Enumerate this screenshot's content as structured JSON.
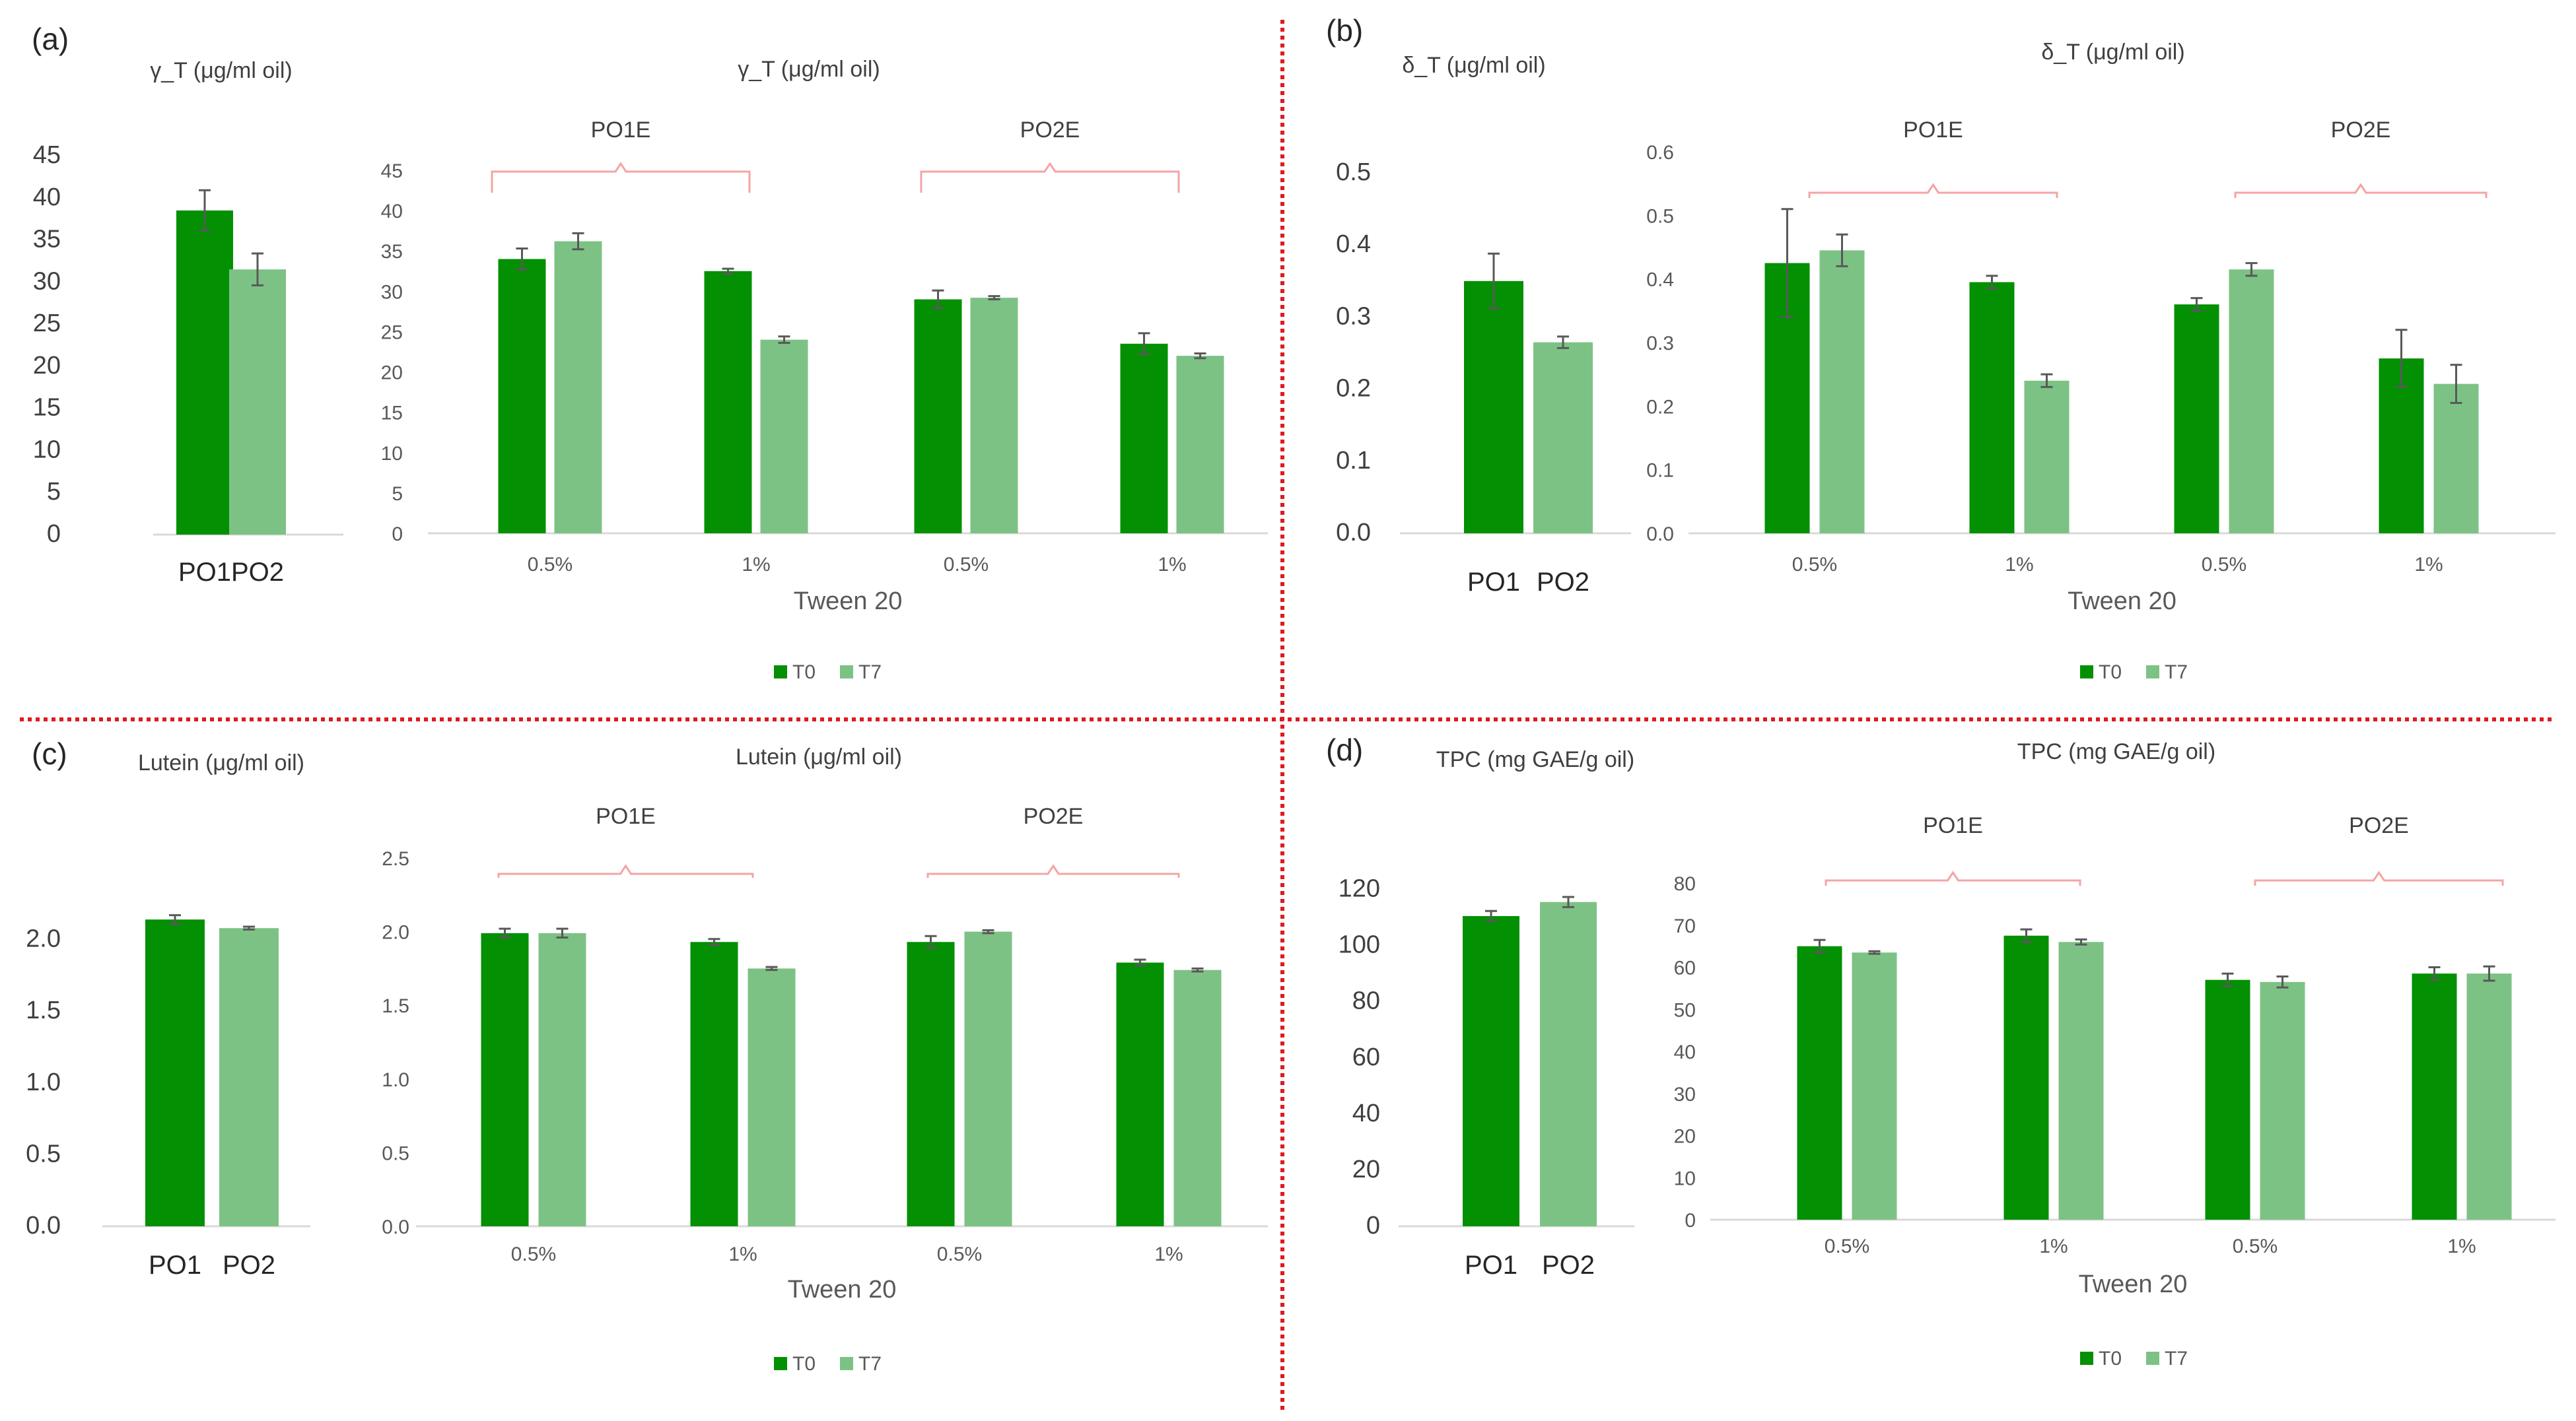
{
  "figure": {
    "colors": {
      "T0": "#039003",
      "T7": "#7dc285",
      "PO1": "#039003",
      "PO2": "#7dc285",
      "bracket": "#f4a4a4",
      "divider": "#e0191f"
    }
  },
  "chart_data": [
    {
      "id": "a-base",
      "type": "bar",
      "panel_label": "(a)",
      "title": "γ_T (μg/ml oil)",
      "categories": [
        "PO1",
        "PO2"
      ],
      "values": [
        38.5,
        31.5
      ],
      "errors": [
        2.4,
        1.9
      ],
      "ylim": [
        0,
        45
      ],
      "yticks": [
        "0",
        "5",
        "10",
        "15",
        "20",
        "25",
        "30",
        "35",
        "40",
        "45"
      ],
      "xlabel": "",
      "ylabel": ""
    },
    {
      "id": "a-emul",
      "type": "bar",
      "title": "γ_T (μg/ml oil)",
      "categories": [
        "0.5%",
        "1%",
        "0.5%",
        "1%"
      ],
      "groups": [
        "PO1E",
        "PO2E"
      ],
      "series": [
        {
          "name": "T0",
          "values": [
            34.0,
            32.5,
            29.0,
            23.5
          ],
          "errors": [
            1.3,
            0.3,
            1.1,
            1.3
          ]
        },
        {
          "name": "T7",
          "values": [
            36.2,
            24.0,
            29.2,
            22.0
          ],
          "errors": [
            1.0,
            0.4,
            0.2,
            0.3
          ]
        }
      ],
      "ylim": [
        0,
        45
      ],
      "yticks": [
        "0",
        "5",
        "10",
        "15",
        "20",
        "25",
        "30",
        "35",
        "40",
        "45"
      ],
      "xlabel": "Tween 20",
      "legend": [
        "T0",
        "T7"
      ]
    },
    {
      "id": "b-base",
      "type": "bar",
      "panel_label": "(b)",
      "title": "δ_T (μg/ml oil)",
      "categories": [
        "PO1",
        "PO2"
      ],
      "values": [
        0.35,
        0.265
      ],
      "errors": [
        0.038,
        0.008
      ],
      "ylim": [
        0,
        0.5
      ],
      "yticks": [
        "0.0",
        "0.1",
        "0.2",
        "0.3",
        "0.4",
        "0.5"
      ],
      "xlabel": "",
      "ylabel": ""
    },
    {
      "id": "b-emul",
      "type": "bar",
      "title": "δ_T (μg/ml oil)",
      "categories": [
        "0.5%",
        "1%",
        "0.5%",
        "1%"
      ],
      "groups": [
        "PO1E",
        "PO2E"
      ],
      "series": [
        {
          "name": "T0",
          "values": [
            0.425,
            0.395,
            0.36,
            0.275
          ],
          "errors": [
            0.085,
            0.01,
            0.01,
            0.045
          ]
        },
        {
          "name": "T7",
          "values": [
            0.445,
            0.24,
            0.415,
            0.235
          ],
          "errors": [
            0.025,
            0.01,
            0.01,
            0.03
          ]
        }
      ],
      "ylim": [
        0,
        0.6
      ],
      "yticks": [
        "0.0",
        "0.1",
        "0.2",
        "0.3",
        "0.4",
        "0.5",
        "0.6"
      ],
      "xlabel": "Tween 20",
      "legend": [
        "T0",
        "T7"
      ]
    },
    {
      "id": "c-base",
      "type": "bar",
      "panel_label": "(c)",
      "title": "Lutein (μg/ml oil)",
      "categories": [
        "PO1",
        "PO2"
      ],
      "values": [
        2.14,
        2.08
      ],
      "errors": [
        0.03,
        0.01
      ],
      "ylim": [
        0,
        2.5
      ],
      "yticks": [
        "0.0",
        "0.5",
        "1.0",
        "1.5",
        "2.0"
      ],
      "xlabel": "",
      "ylabel": ""
    },
    {
      "id": "c-emul",
      "type": "bar",
      "title": "Lutein (μg/ml oil)",
      "categories": [
        "0.5%",
        "1%",
        "0.5%",
        "1%"
      ],
      "groups": [
        "PO1E",
        "PO2E"
      ],
      "series": [
        {
          "name": "T0",
          "values": [
            1.99,
            1.93,
            1.93,
            1.79
          ],
          "errors": [
            0.03,
            0.02,
            0.04,
            0.02
          ]
        },
        {
          "name": "T7",
          "values": [
            1.99,
            1.75,
            2.0,
            1.74
          ],
          "errors": [
            0.03,
            0.01,
            0.01,
            0.01
          ]
        }
      ],
      "ylim": [
        0,
        2.5
      ],
      "yticks": [
        "0.0",
        "0.5",
        "1.0",
        "1.5",
        "2.0",
        "2.5"
      ],
      "xlabel": "Tween 20",
      "legend": [
        "T0",
        "T7"
      ]
    },
    {
      "id": "d-base",
      "type": "bar",
      "panel_label": "(d)",
      "title": "TPC (mg GAE/g oil)",
      "categories": [
        "PO1",
        "PO2"
      ],
      "values": [
        110.5,
        115.5
      ],
      "errors": [
        1.8,
        1.8
      ],
      "ylim": [
        0,
        130
      ],
      "yticks": [
        "0",
        "20",
        "40",
        "60",
        "80",
        "100",
        "120"
      ],
      "xlabel": "",
      "ylabel": ""
    },
    {
      "id": "d-emul",
      "type": "bar",
      "title": "TPC (mg GAE/g oil)",
      "categories": [
        "0.5%",
        "1%",
        "0.5%",
        "1%"
      ],
      "groups": [
        "PO1E",
        "PO2E"
      ],
      "series": [
        {
          "name": "T0",
          "values": [
            65.0,
            67.5,
            57.0,
            58.5
          ],
          "errors": [
            1.5,
            1.5,
            1.5,
            1.5
          ]
        },
        {
          "name": "T7",
          "values": [
            63.5,
            66.0,
            56.5,
            58.5
          ],
          "errors": [
            0.3,
            0.6,
            1.3,
            1.7
          ]
        }
      ],
      "ylim": [
        0,
        80
      ],
      "yticks": [
        "0",
        "10",
        "20",
        "30",
        "40",
        "50",
        "60",
        "70",
        "80"
      ],
      "xlabel": "Tween 20",
      "legend": [
        "T0",
        "T7"
      ]
    }
  ]
}
